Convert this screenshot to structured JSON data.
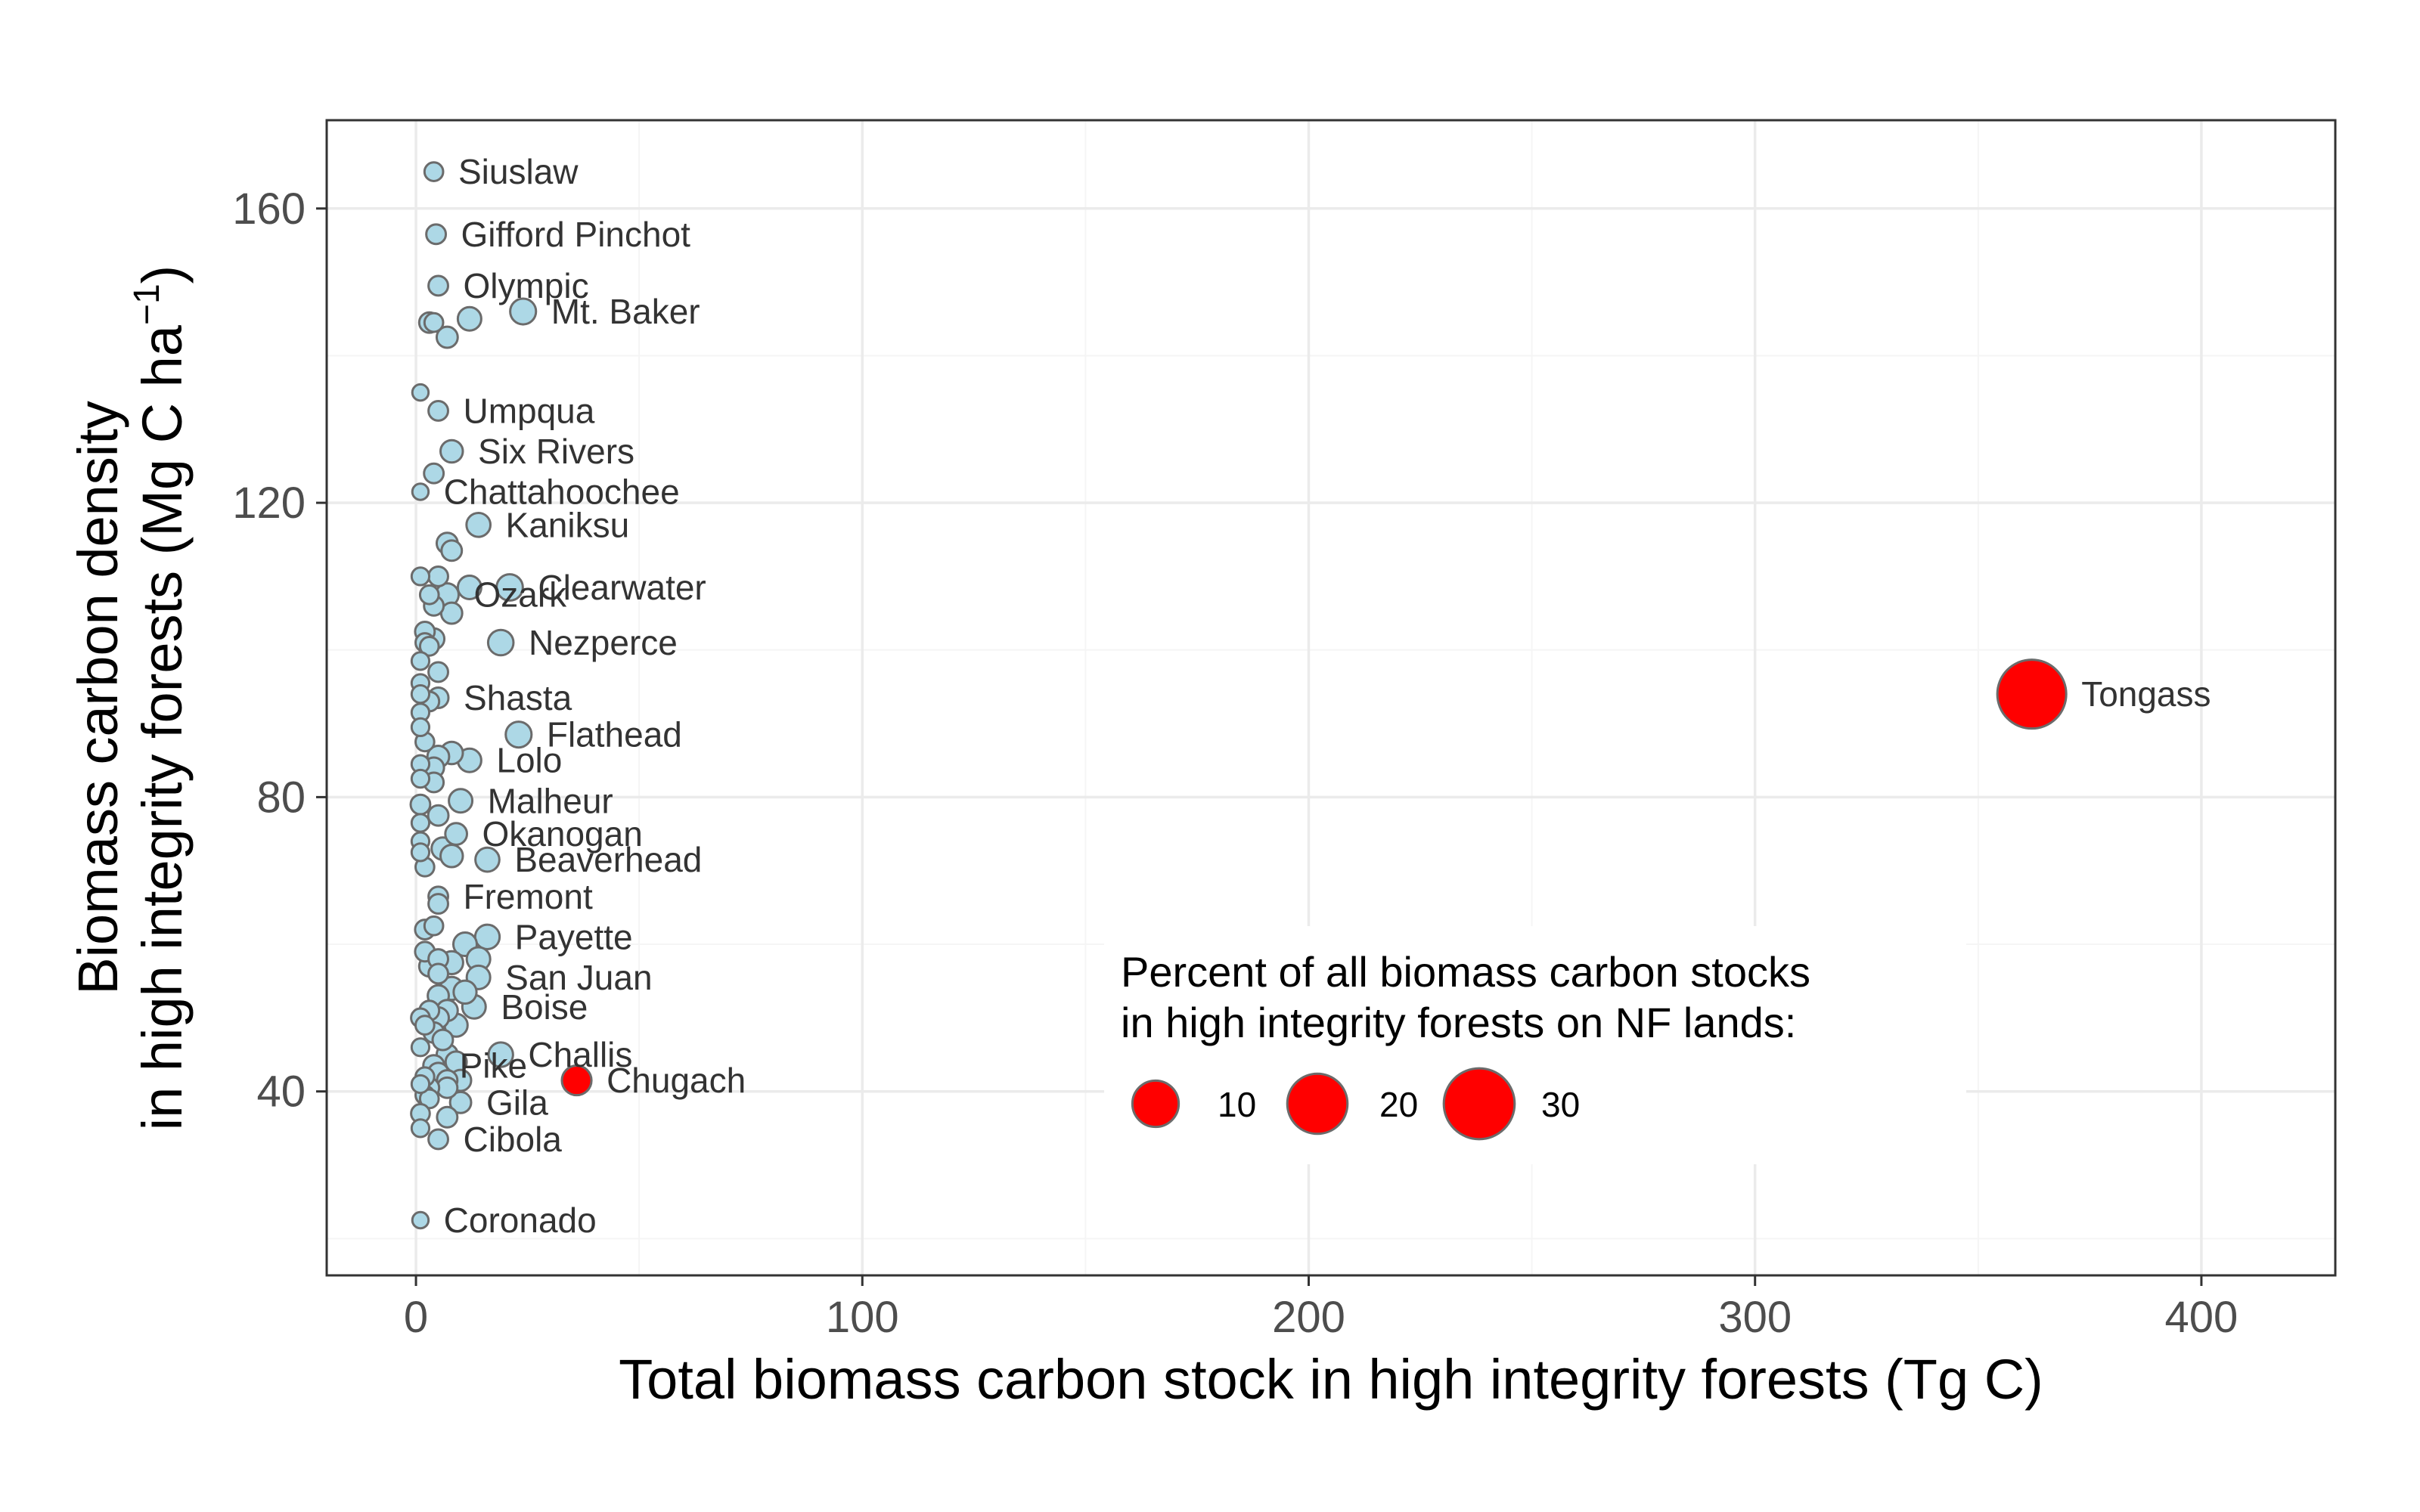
{
  "chart_data": {
    "type": "scatter",
    "title": "",
    "xlabel": "Total biomass carbon stock in high integrity forests (Tg C)",
    "ylabel_line1": "Biomass carbon density",
    "ylabel_line2": "in high integrity forests (Mg C ha",
    "ylabel_sup": "−1",
    "ylabel_close": ")",
    "xlim": [
      -20,
      430
    ],
    "ylim": [
      15,
      172
    ],
    "x_ticks": [
      0,
      100,
      200,
      300,
      400
    ],
    "y_ticks": [
      40,
      80,
      120,
      160
    ],
    "x_tick_labels": [
      "0",
      "100",
      "200",
      "300",
      "400"
    ],
    "y_tick_labels": [
      "40",
      "80",
      "120",
      "160"
    ],
    "grid": true,
    "colors": {
      "default_point": "#add8e6",
      "highlight_point": "#ff0000",
      "point_outline": "#6b6b6b",
      "panel_border": "#333333",
      "grid_major": "#ebebeb",
      "grid_minor": "#f5f5f5"
    },
    "size_legend": {
      "title_line1": "Percent of all biomass carbon stocks",
      "title_line2": "in high integrity forests on NF lands:",
      "entries": [
        {
          "label": "10",
          "value": 10
        },
        {
          "label": "20",
          "value": 20
        },
        {
          "label": "30",
          "value": 30
        }
      ],
      "placement": "bottom-center inside plot"
    },
    "points": [
      {
        "x": 4,
        "y": 165,
        "pct": 0.3,
        "label": "Siuslaw"
      },
      {
        "x": 4.5,
        "y": 156.5,
        "pct": 0.4,
        "label": "Gifford Pinchot"
      },
      {
        "x": 5,
        "y": 149.5,
        "pct": 0.4,
        "label": "Olympic"
      },
      {
        "x": 24,
        "y": 146,
        "pct": 1.5,
        "label": "Mt. Baker"
      },
      {
        "x": 12,
        "y": 145,
        "pct": 1.0
      },
      {
        "x": 3,
        "y": 144.5,
        "pct": 0.5
      },
      {
        "x": 4,
        "y": 144.5,
        "pct": 0.3
      },
      {
        "x": 7,
        "y": 142.5,
        "pct": 0.6
      },
      {
        "x": 1,
        "y": 135,
        "pct": 0.1
      },
      {
        "x": 5,
        "y": 132.5,
        "pct": 0.4,
        "label": "Umpqua"
      },
      {
        "x": 8,
        "y": 127,
        "pct": 0.8,
        "label": "Six Rivers"
      },
      {
        "x": 4,
        "y": 124,
        "pct": 0.4
      },
      {
        "x": 1,
        "y": 121.5,
        "pct": 0.1,
        "label": "Chattahoochee"
      },
      {
        "x": 14,
        "y": 117,
        "pct": 1.1,
        "label": "Kaniksu"
      },
      {
        "x": 7,
        "y": 114.5,
        "pct": 0.6
      },
      {
        "x": 8,
        "y": 113.5,
        "pct": 0.5
      },
      {
        "x": 1,
        "y": 110,
        "pct": 0.2
      },
      {
        "x": 5,
        "y": 110,
        "pct": 0.4
      },
      {
        "x": 21,
        "y": 108.5,
        "pct": 1.6,
        "label": "Clearwater"
      },
      {
        "x": 12,
        "y": 108.5,
        "pct": 1.0
      },
      {
        "x": 7,
        "y": 107.5,
        "pct": 0.9,
        "label": "Ozark"
      },
      {
        "x": 3,
        "y": 107.5,
        "pct": 0.3
      },
      {
        "x": 4,
        "y": 106,
        "pct": 0.4
      },
      {
        "x": 8,
        "y": 105,
        "pct": 0.6
      },
      {
        "x": 2,
        "y": 102.5,
        "pct": 0.4
      },
      {
        "x": 19,
        "y": 101,
        "pct": 1.4,
        "label": "Nezperce"
      },
      {
        "x": 4,
        "y": 101.5,
        "pct": 0.6
      },
      {
        "x": 2,
        "y": 101,
        "pct": 0.3
      },
      {
        "x": 3,
        "y": 100.5,
        "pct": 0.3
      },
      {
        "x": 1,
        "y": 98.5,
        "pct": 0.2
      },
      {
        "x": 5,
        "y": 97,
        "pct": 0.4
      },
      {
        "x": 1,
        "y": 95.5,
        "pct": 0.2
      },
      {
        "x": 1,
        "y": 94,
        "pct": 0.2
      },
      {
        "x": 5,
        "y": 93.5,
        "pct": 0.5,
        "label": "Shasta"
      },
      {
        "x": 3,
        "y": 93,
        "pct": 0.4
      },
      {
        "x": 1,
        "y": 91.5,
        "pct": 0.2
      },
      {
        "x": 1,
        "y": 89.5,
        "pct": 0.2
      },
      {
        "x": 362,
        "y": 94,
        "pct": 28,
        "label": "Tongass",
        "highlight": true
      },
      {
        "x": 23,
        "y": 88.5,
        "pct": 1.5,
        "label": "Flathead"
      },
      {
        "x": 2,
        "y": 87.5,
        "pct": 0.3
      },
      {
        "x": 8,
        "y": 86,
        "pct": 0.8
      },
      {
        "x": 5,
        "y": 85.5,
        "pct": 0.7
      },
      {
        "x": 12,
        "y": 85,
        "pct": 1.0,
        "label": "Lolo"
      },
      {
        "x": 1,
        "y": 84.5,
        "pct": 0.2
      },
      {
        "x": 4,
        "y": 84,
        "pct": 0.5
      },
      {
        "x": 1,
        "y": 82.5,
        "pct": 0.2
      },
      {
        "x": 4,
        "y": 82,
        "pct": 0.4
      },
      {
        "x": 10,
        "y": 79.5,
        "pct": 1.0,
        "label": "Malheur"
      },
      {
        "x": 1,
        "y": 79,
        "pct": 0.4
      },
      {
        "x": 5,
        "y": 77.5,
        "pct": 0.5
      },
      {
        "x": 1,
        "y": 76.5,
        "pct": 0.2
      },
      {
        "x": 9,
        "y": 75,
        "pct": 0.7,
        "label": "Okanogan"
      },
      {
        "x": 1,
        "y": 74,
        "pct": 0.2
      },
      {
        "x": 6,
        "y": 73,
        "pct": 0.8
      },
      {
        "x": 1,
        "y": 72.5,
        "pct": 0.2
      },
      {
        "x": 8,
        "y": 72,
        "pct": 0.8
      },
      {
        "x": 16,
        "y": 71.5,
        "pct": 1.1,
        "label": "Beaverhead"
      },
      {
        "x": 2,
        "y": 70.5,
        "pct": 0.3
      },
      {
        "x": 5,
        "y": 66.5,
        "pct": 0.4,
        "label": "Fremont"
      },
      {
        "x": 5,
        "y": 65.5,
        "pct": 0.4
      },
      {
        "x": 4,
        "y": 62.5,
        "pct": 0.3
      },
      {
        "x": 2,
        "y": 62,
        "pct": 0.4
      },
      {
        "x": 16,
        "y": 61,
        "pct": 1.2,
        "label": "Payette"
      },
      {
        "x": 11,
        "y": 60,
        "pct": 1.0
      },
      {
        "x": 2,
        "y": 59,
        "pct": 0.4
      },
      {
        "x": 5,
        "y": 58,
        "pct": 0.4
      },
      {
        "x": 14,
        "y": 58,
        "pct": 1.0
      },
      {
        "x": 8,
        "y": 57.5,
        "pct": 0.9
      },
      {
        "x": 3,
        "y": 57,
        "pct": 0.5
      },
      {
        "x": 5,
        "y": 56,
        "pct": 0.4
      },
      {
        "x": 14,
        "y": 55.5,
        "pct": 1.0,
        "label": "San Juan"
      },
      {
        "x": 8,
        "y": 54,
        "pct": 0.9
      },
      {
        "x": 11,
        "y": 53.5,
        "pct": 0.9
      },
      {
        "x": 5,
        "y": 53,
        "pct": 0.6
      },
      {
        "x": 13,
        "y": 51.5,
        "pct": 1.0,
        "label": "Boise"
      },
      {
        "x": 3,
        "y": 51,
        "pct": 0.4
      },
      {
        "x": 7,
        "y": 51,
        "pct": 0.6
      },
      {
        "x": 1,
        "y": 50,
        "pct": 0.3
      },
      {
        "x": 5,
        "y": 50,
        "pct": 0.6
      },
      {
        "x": 9,
        "y": 49,
        "pct": 0.9
      },
      {
        "x": 2,
        "y": 49,
        "pct": 0.3
      },
      {
        "x": 4,
        "y": 48,
        "pct": 0.5
      },
      {
        "x": 1,
        "y": 46,
        "pct": 0.2
      },
      {
        "x": 6,
        "y": 47,
        "pct": 0.5
      },
      {
        "x": 19,
        "y": 45,
        "pct": 1.2,
        "label": "Challis"
      },
      {
        "x": 7,
        "y": 45,
        "pct": 0.6
      },
      {
        "x": 9,
        "y": 44,
        "pct": 0.6
      },
      {
        "x": 4,
        "y": 43.5,
        "pct": 0.6,
        "label": "Pike"
      },
      {
        "x": 2,
        "y": 42,
        "pct": 0.3
      },
      {
        "x": 5,
        "y": 42.5,
        "pct": 0.5
      },
      {
        "x": 7,
        "y": 41.5,
        "pct": 0.5
      },
      {
        "x": 10,
        "y": 41.5,
        "pct": 0.6
      },
      {
        "x": 36,
        "y": 41.5,
        "pct": 2.5,
        "label": "Chugach",
        "highlight": true
      },
      {
        "x": 1,
        "y": 41,
        "pct": 0.2
      },
      {
        "x": 7,
        "y": 40.5,
        "pct": 0.5
      },
      {
        "x": 3,
        "y": 40.5,
        "pct": 0.4
      },
      {
        "x": 2,
        "y": 39.5,
        "pct": 0.3
      },
      {
        "x": 3,
        "y": 39,
        "pct": 0.3
      },
      {
        "x": 10,
        "y": 38.5,
        "pct": 0.6,
        "label": "Gila"
      },
      {
        "x": 1,
        "y": 37,
        "pct": 0.3
      },
      {
        "x": 7,
        "y": 36.5,
        "pct": 0.5
      },
      {
        "x": 1,
        "y": 35,
        "pct": 0.2
      },
      {
        "x": 5,
        "y": 33.5,
        "pct": 0.4,
        "label": "Cibola"
      },
      {
        "x": 1,
        "y": 22.5,
        "pct": 0.1,
        "label": "Coronado"
      }
    ]
  }
}
